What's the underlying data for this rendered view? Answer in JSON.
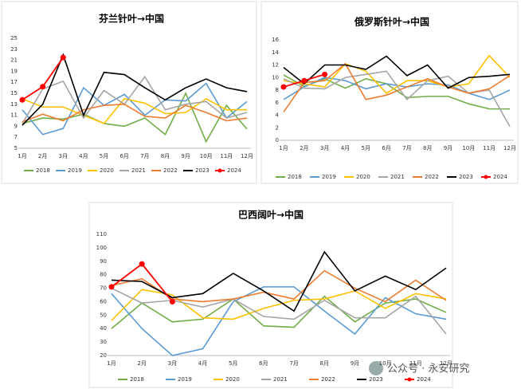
{
  "chart_data": [
    {
      "type": "line",
      "title": "芬兰针叶→中国",
      "categories": [
        "1月",
        "2月",
        "3月",
        "4月",
        "5月",
        "6月",
        "7月",
        "8月",
        "9月",
        "10月",
        "11月",
        "12月"
      ],
      "ylim": [
        5,
        25
      ],
      "yticks": [
        5,
        7,
        9,
        11,
        13,
        15,
        17,
        19,
        21,
        23,
        25
      ],
      "grid": false,
      "legend": "bottom",
      "series": [
        {
          "name": "2018",
          "color": "#70ad47",
          "values": [
            9.5,
            10.5,
            10.3,
            11.2,
            9.5,
            9,
            10.5,
            7.5,
            15,
            6.2,
            12.8,
            8.5
          ]
        },
        {
          "name": "2019",
          "color": "#5b9bd5",
          "values": [
            12,
            7.5,
            8.6,
            16,
            12.8,
            14.8,
            11,
            13.8,
            13.6,
            16.8,
            10.5,
            13.5
          ]
        },
        {
          "name": "2020",
          "color": "#ffc000",
          "values": [
            14,
            12.5,
            12.5,
            11,
            9.5,
            14,
            13.2,
            11.3,
            11.5,
            14,
            12,
            12
          ]
        },
        {
          "name": "2021",
          "color": "#a5a5a5",
          "values": [
            9.5,
            15.8,
            17.2,
            10.5,
            15.5,
            13,
            18,
            12,
            13,
            13.5,
            10.5,
            11.5
          ]
        },
        {
          "name": "2022",
          "color": "#ed7d31",
          "values": [
            9.8,
            11.2,
            10,
            12,
            12.8,
            13,
            10.8,
            10.5,
            12.8,
            11.5,
            10,
            10.5
          ]
        },
        {
          "name": "2023",
          "color": "#000000",
          "values": [
            9.2,
            13,
            22,
            11,
            18.8,
            18.4,
            16,
            13.8,
            16,
            17.6,
            16,
            15.3
          ]
        },
        {
          "name": "2024",
          "color": "#ff0000",
          "marker": "circle",
          "values": [
            13.8,
            16.2,
            21.5,
            null,
            null,
            null,
            null,
            null,
            null,
            null,
            null,
            null
          ]
        }
      ]
    },
    {
      "type": "line",
      "title": "俄罗斯针叶→中国",
      "categories": [
        "1月",
        "2月",
        "3月",
        "4月",
        "5月",
        "6月",
        "7月",
        "8月",
        "9月",
        "10月",
        "11月",
        "12月"
      ],
      "ylim": [
        0,
        16
      ],
      "yticks": [
        0,
        2,
        4,
        6,
        8,
        10,
        12,
        14,
        16
      ],
      "grid": false,
      "legend": "bottom",
      "series": [
        {
          "name": "2018",
          "color": "#70ad47",
          "values": [
            10.4,
            8.6,
            9.8,
            8.3,
            9.8,
            9,
            6.8,
            7,
            7,
            5.8,
            5,
            5
          ]
        },
        {
          "name": "2019",
          "color": "#5b9bd5",
          "values": [
            6.5,
            8.5,
            10,
            9.5,
            8.2,
            9,
            8.5,
            9,
            8.8,
            7.5,
            6.5,
            8
          ]
        },
        {
          "name": "2020",
          "color": "#ffc000",
          "values": [
            9.5,
            9,
            8.5,
            12.2,
            11,
            7.5,
            9.5,
            9.5,
            8.5,
            9,
            13.5,
            10
          ]
        },
        {
          "name": "2021",
          "color": "#a5a5a5",
          "values": [
            9.8,
            8.3,
            8.2,
            10,
            10.5,
            11,
            6.5,
            9.5,
            10.2,
            7.5,
            8,
            2.2
          ]
        },
        {
          "name": "2022",
          "color": "#ed7d31",
          "values": [
            4.5,
            9.2,
            9.5,
            12.2,
            6.5,
            7.2,
            8.5,
            9.8,
            8.5,
            7.5,
            8.2,
            10.3
          ]
        },
        {
          "name": "2023",
          "color": "#000000",
          "values": [
            11.6,
            9,
            12,
            12,
            11.3,
            13.4,
            10.3,
            12,
            8.3,
            10,
            10.2,
            10.5
          ]
        },
        {
          "name": "2024",
          "color": "#ff0000",
          "marker": "circle",
          "values": [
            8.5,
            9.5,
            10.5,
            null,
            null,
            null,
            null,
            null,
            null,
            null,
            null,
            null
          ]
        }
      ]
    },
    {
      "type": "line",
      "title": "巴西阔叶→中国",
      "categories": [
        "1月",
        "2月",
        "3月",
        "4月",
        "5月",
        "6月",
        "7月",
        "8月",
        "9月",
        "10月",
        "11月",
        "12月"
      ],
      "ylim": [
        20,
        110
      ],
      "yticks": [
        20,
        30,
        40,
        50,
        60,
        70,
        80,
        90,
        100,
        110
      ],
      "grid": false,
      "legend": "bottom",
      "series": [
        {
          "name": "2018",
          "color": "#70ad47",
          "values": [
            40,
            59,
            45,
            47,
            62,
            42,
            41,
            64,
            45,
            59,
            62,
            52
          ]
        },
        {
          "name": "2019",
          "color": "#5b9bd5",
          "values": [
            66,
            40,
            20,
            25,
            60,
            71,
            71,
            53,
            36,
            63,
            51,
            47
          ]
        },
        {
          "name": "2020",
          "color": "#ffc000",
          "values": [
            46,
            69,
            65,
            48,
            47,
            55,
            61,
            62,
            68,
            55,
            66,
            62
          ]
        },
        {
          "name": "2021",
          "color": "#a5a5a5",
          "values": [
            70,
            59,
            61,
            56,
            62,
            49,
            47,
            61,
            48,
            48,
            64,
            36
          ]
        },
        {
          "name": "2022",
          "color": "#ed7d31",
          "values": [
            72,
            77,
            62,
            60,
            62,
            67,
            62,
            83,
            70,
            60,
            76,
            61
          ]
        },
        {
          "name": "2023",
          "color": "#000000",
          "values": [
            76,
            75,
            63,
            66,
            81,
            68,
            53,
            97,
            68,
            79,
            69,
            85
          ]
        },
        {
          "name": "2024",
          "color": "#ff0000",
          "marker": "circle",
          "values": [
            71,
            88,
            60,
            null,
            null,
            null,
            null,
            null,
            null,
            null,
            null,
            null
          ]
        }
      ]
    }
  ],
  "watermark": "公众号 · 永安研究"
}
